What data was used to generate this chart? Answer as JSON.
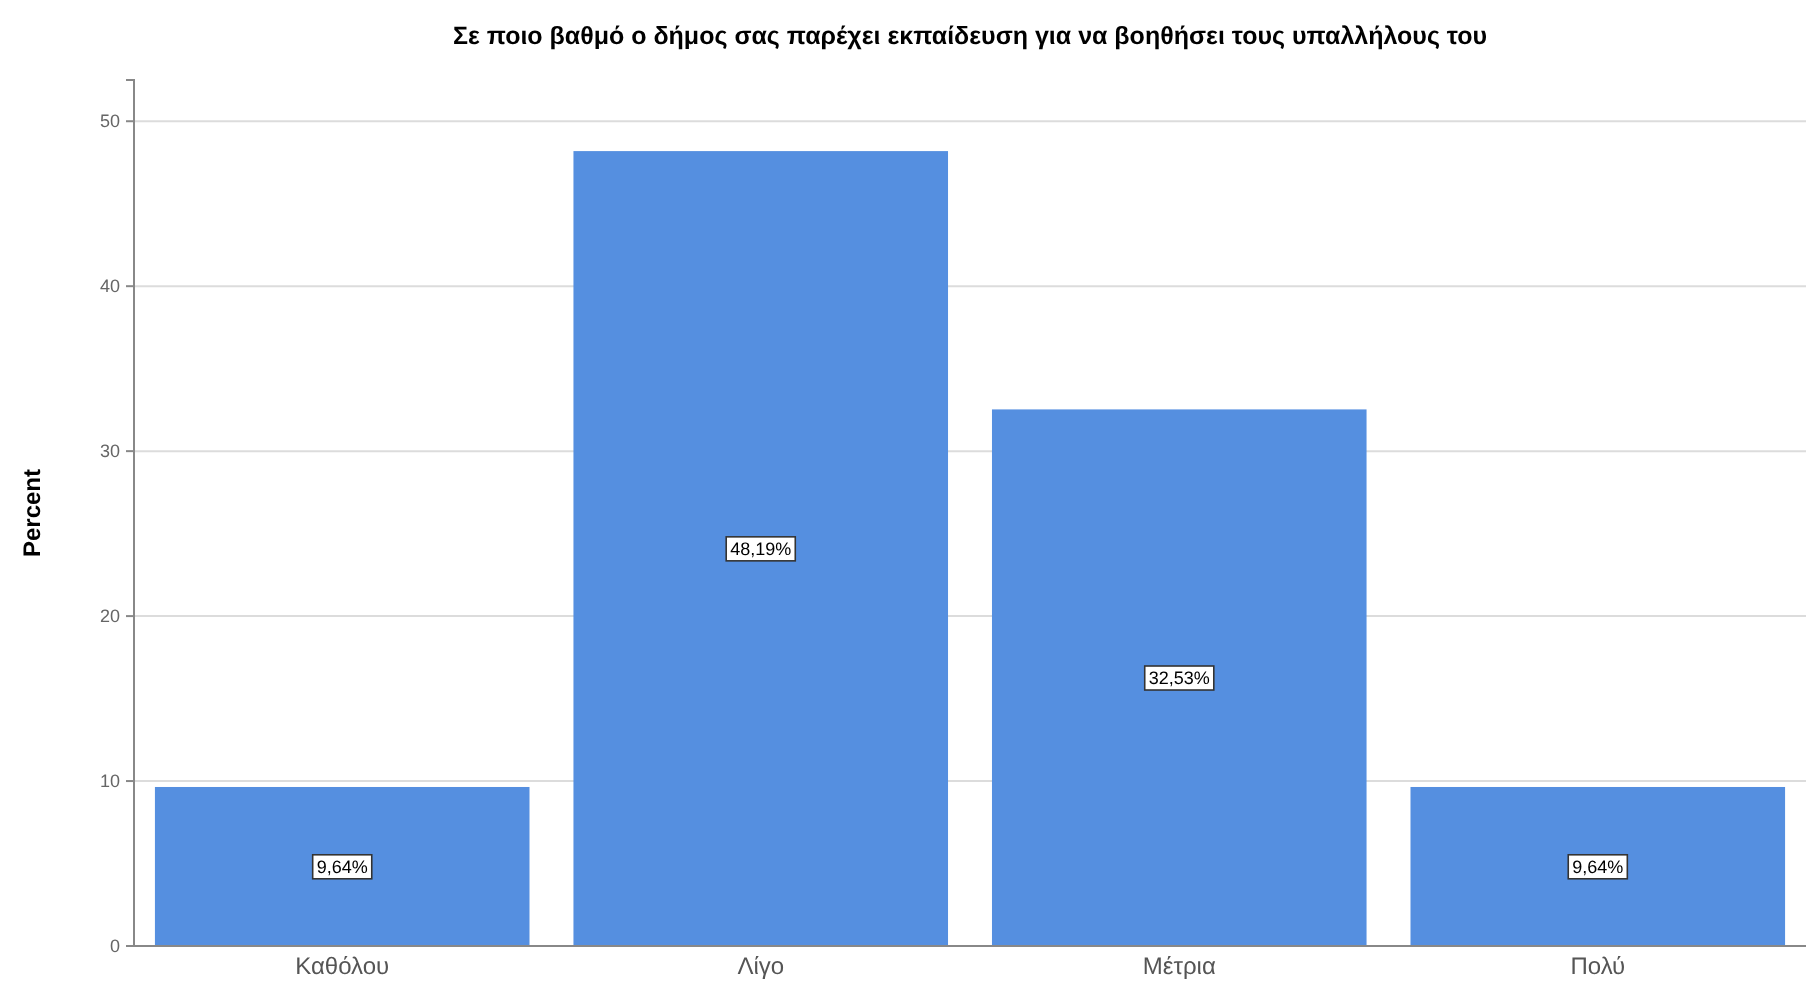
{
  "chart_data": {
    "type": "bar",
    "title": "Σε ποιο βαθμό ο δήμος σας παρέχει εκπαίδευση για να βοηθήσει τους υπαλλήλους του",
    "ylabel": "Percent",
    "categories": [
      "Καθόλου",
      "Λίγο",
      "Μέτρια",
      "Πολύ"
    ],
    "values": [
      9.64,
      48.19,
      32.53,
      9.64
    ],
    "value_labels": [
      "9,64%",
      "48,19%",
      "32,53%",
      "9,64%"
    ],
    "color": "#558fe0",
    "ylim": [
      0,
      52.5
    ],
    "yticks": [
      0,
      10,
      20,
      30,
      40,
      50
    ],
    "grid": "y"
  }
}
